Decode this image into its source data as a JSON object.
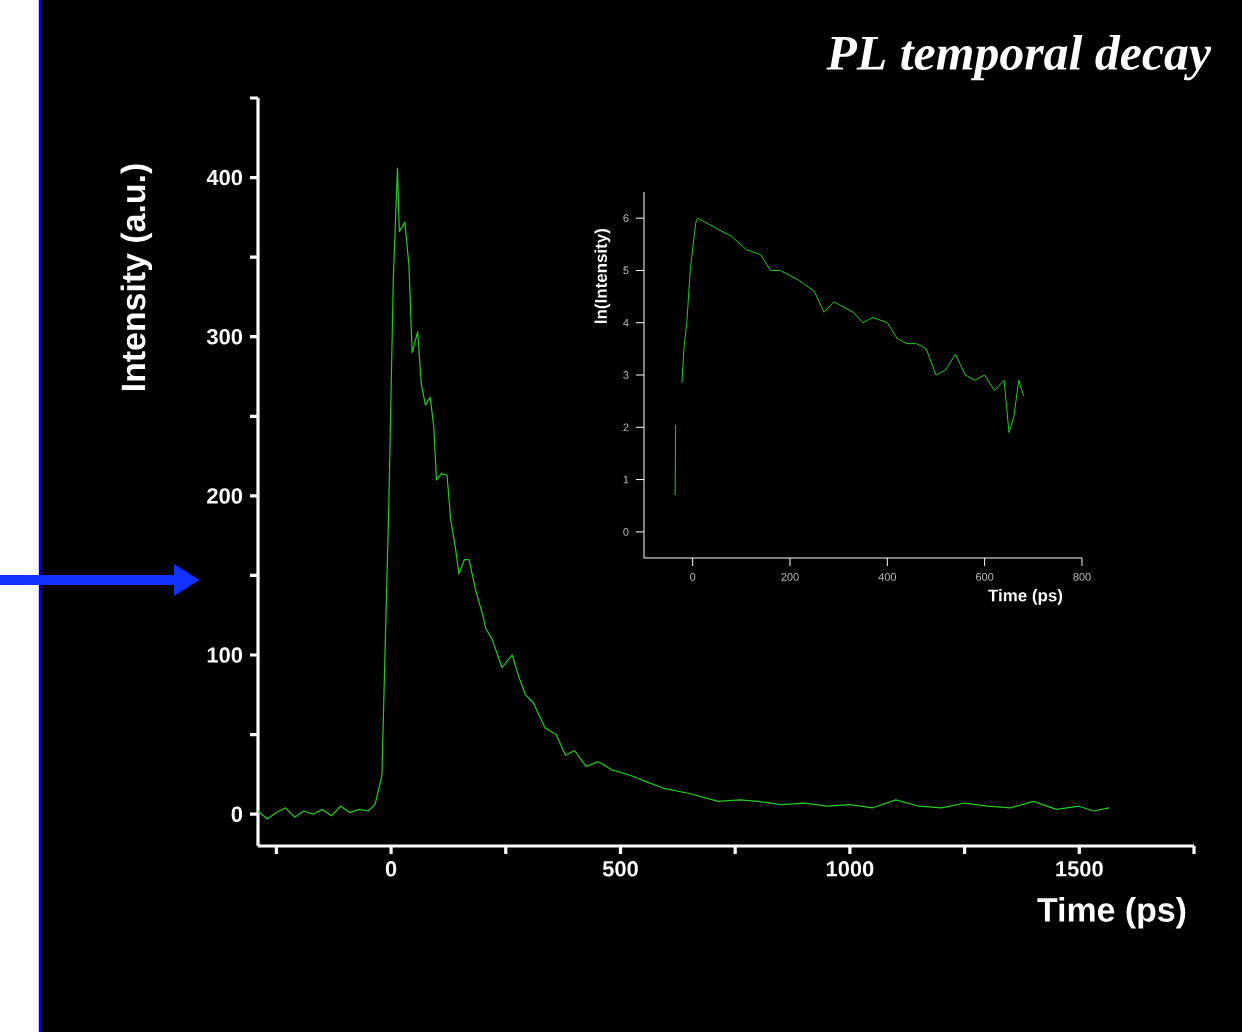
{
  "chart_data": [
    {
      "type": "line",
      "title": "PL temporal decay",
      "xlabel": "Time (ps)",
      "ylabel": "Intensity (a.u.)",
      "x": [
        -290,
        -270,
        -250,
        -230,
        -210,
        -190,
        -170,
        -150,
        -130,
        -110,
        -90,
        -70,
        -50,
        -35,
        -20,
        -5,
        5,
        14,
        18,
        30,
        39,
        46,
        58,
        66,
        75,
        85,
        93,
        99,
        110,
        122,
        130,
        140,
        148,
        160,
        170,
        185,
        200,
        206,
        220,
        242,
        255,
        264,
        280,
        293,
        310,
        336,
        360,
        380,
        400,
        425,
        452,
        480,
        525,
        560,
        597,
        650,
        713,
        760,
        800,
        850,
        900,
        950,
        1000,
        1050,
        1100,
        1150,
        1200,
        1250,
        1300,
        1350,
        1400,
        1450,
        1500,
        1530,
        1565
      ],
      "series": [
        {
          "color": "#22cc22",
          "values": [
            2,
            -3,
            1,
            4,
            -2,
            2,
            0,
            3,
            -1,
            5,
            1,
            3,
            2,
            6,
            24,
            193,
            337,
            406,
            366,
            372,
            345,
            290,
            303,
            270,
            257,
            262,
            244,
            210,
            214,
            213,
            185,
            168,
            151,
            160,
            160,
            140,
            125,
            117,
            110,
            92,
            97,
            100,
            85,
            75,
            70,
            54,
            50,
            37,
            40,
            30,
            33,
            28,
            24,
            20,
            16,
            13,
            8,
            9,
            8,
            6,
            7,
            5,
            6,
            4,
            9,
            5,
            4,
            7,
            5,
            4,
            8,
            3,
            5,
            2,
            4
          ]
        }
      ],
      "xlim": [
        -290,
        1750
      ],
      "ylim": [
        -20,
        450
      ],
      "xticks": [
        {
          "value": -250,
          "label": null
        },
        0,
        {
          "value": 250,
          "label": null
        },
        500,
        {
          "value": 750,
          "label": null
        },
        1000,
        {
          "value": 1250,
          "label": null
        },
        1500,
        {
          "value": 1750,
          "label": null
        }
      ],
      "yticks": [
        0,
        {
          "value": 50,
          "label": null
        },
        100,
        {
          "value": 150,
          "label": null
        },
        200,
        {
          "value": 250,
          "label": null
        },
        300,
        {
          "value": 350,
          "label": null
        },
        400,
        {
          "value": 450,
          "label": null
        }
      ]
    },
    {
      "type": "line",
      "xlabel": "Time (ps)",
      "ylabel": "ln(Intensity)",
      "x": [
        -36,
        -35,
        -30,
        -22,
        -18,
        -12,
        -5,
        6,
        10,
        30,
        50,
        80,
        110,
        140,
        160,
        180,
        200,
        220,
        250,
        270,
        290,
        310,
        330,
        350,
        370,
        400,
        420,
        440,
        460,
        480,
        500,
        520,
        540,
        560,
        580,
        600,
        620,
        640,
        650,
        660,
        670,
        680
      ],
      "series": [
        {
          "color": "#22cc22",
          "values": [
            0.7,
            2.05,
            null,
            2.85,
            3.5,
            4.0,
            5.0,
            5.9,
            6.0,
            5.9,
            5.8,
            5.65,
            5.4,
            5.3,
            5.0,
            5.0,
            4.9,
            4.8,
            4.6,
            4.2,
            4.4,
            4.3,
            4.2,
            4.0,
            4.1,
            4.0,
            3.7,
            3.6,
            3.6,
            3.5,
            3.0,
            3.1,
            3.4,
            3.0,
            2.9,
            3.0,
            2.7,
            2.9,
            1.9,
            2.2,
            2.9,
            2.6
          ]
        }
      ],
      "xlim": [
        -100,
        800
      ],
      "ylim": [
        -0.5,
        6.5
      ],
      "xticks": [
        0,
        200,
        400,
        600,
        800
      ],
      "yticks": [
        0,
        1,
        2,
        3,
        4,
        5,
        6
      ]
    }
  ]
}
